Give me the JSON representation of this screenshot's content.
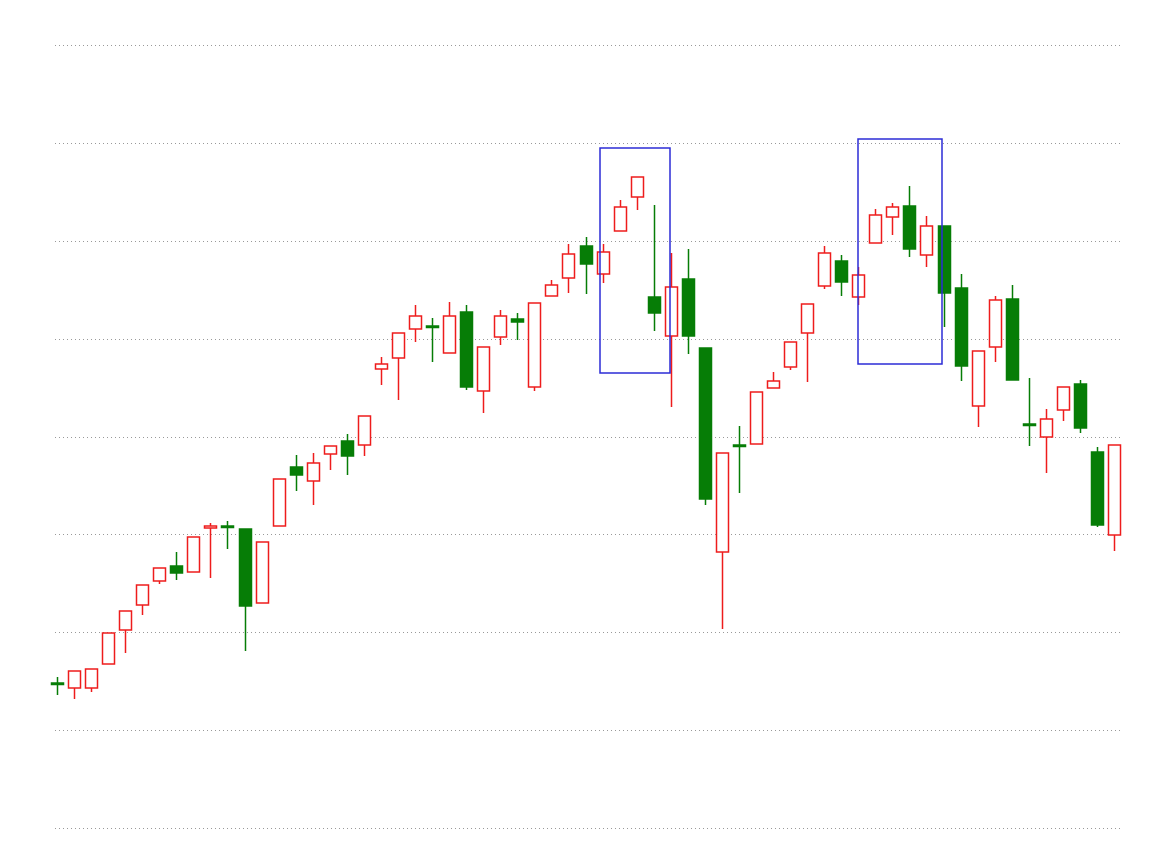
{
  "chart_data": {
    "type": "candlestick",
    "open": [
      145,
      140,
      140,
      164,
      198,
      223,
      247,
      262,
      256,
      300,
      302,
      299,
      225,
      302,
      361,
      347,
      374,
      387,
      383,
      459,
      470,
      499,
      502,
      475,
      516,
      437,
      491,
      509,
      441,
      532,
      550,
      582,
      554,
      597,
      631,
      531,
      492,
      549,
      480,
      276,
      383,
      384,
      440,
      461,
      495,
      542,
      567,
      531,
      585,
      611,
      622,
      573,
      602,
      540,
      422,
      481,
      529,
      404,
      391,
      418,
      444,
      376,
      293
    ],
    "high": [
      151,
      157,
      159,
      195,
      217,
      243,
      260,
      276,
      291,
      305,
      307,
      299,
      286,
      349,
      373,
      375,
      382,
      394,
      412,
      471,
      495,
      523,
      510,
      526,
      523,
      481,
      518,
      515,
      525,
      548,
      584,
      591,
      584,
      628,
      651,
      623,
      575,
      579,
      480,
      375,
      402,
      436,
      456,
      486,
      524,
      582,
      573,
      561,
      619,
      625,
      642,
      612,
      602,
      554,
      477,
      532,
      543,
      450,
      419,
      441,
      448,
      381,
      383
    ],
    "low": [
      133,
      129,
      136,
      164,
      175,
      213,
      244,
      248,
      256,
      250,
      279,
      177,
      225,
      302,
      337,
      323,
      358,
      353,
      372,
      443,
      428,
      486,
      466,
      475,
      438,
      415,
      483,
      488,
      437,
      532,
      535,
      534,
      545,
      597,
      618,
      497,
      421,
      474,
      323,
      199,
      335,
      384,
      440,
      458,
      446,
      539,
      532,
      523,
      585,
      593,
      571,
      561,
      501,
      447,
      401,
      466,
      448,
      382,
      355,
      407,
      395,
      301,
      277
    ],
    "close": [
      145,
      157,
      159,
      195,
      217,
      243,
      260,
      255,
      291,
      302,
      301,
      222,
      286,
      349,
      353,
      365,
      382,
      372,
      412,
      464,
      495,
      512,
      501,
      512,
      441,
      481,
      512,
      506,
      525,
      543,
      574,
      564,
      576,
      621,
      651,
      515,
      541,
      492,
      329,
      375,
      382,
      436,
      447,
      486,
      524,
      575,
      546,
      553,
      613,
      621,
      579,
      602,
      535,
      462,
      477,
      528,
      448,
      403,
      409,
      441,
      400,
      303,
      383
    ],
    "up_color": "#ee1c1c",
    "down_color": "#067d06",
    "ylim": [
      0,
      783
    ],
    "yticks": [
      0,
      98,
      196,
      294,
      391,
      489,
      587,
      685,
      783
    ],
    "grid": true
  }
}
